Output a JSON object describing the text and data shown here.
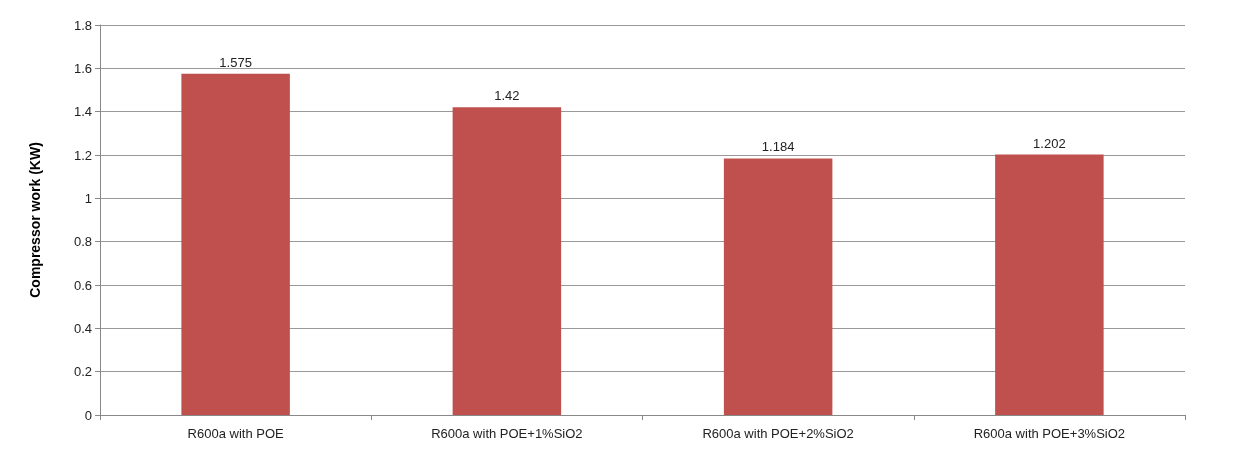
{
  "chart_data": {
    "type": "bar",
    "ylabel": "Compressor work (KW)",
    "categories": [
      "R600a with POE",
      "R600a with POE+1%SiO2",
      "R600a with POE+2%SiO2",
      "R600a with POE+3%SiO2"
    ],
    "values": [
      1.575,
      1.42,
      1.184,
      1.202
    ],
    "color": "#c0504d",
    "ylim": [
      0,
      1.8
    ],
    "yticks": [
      0,
      0.2,
      0.4,
      0.6,
      0.8,
      1,
      1.2,
      1.4,
      1.6,
      1.8
    ],
    "grid": "y",
    "data_labels": true
  }
}
